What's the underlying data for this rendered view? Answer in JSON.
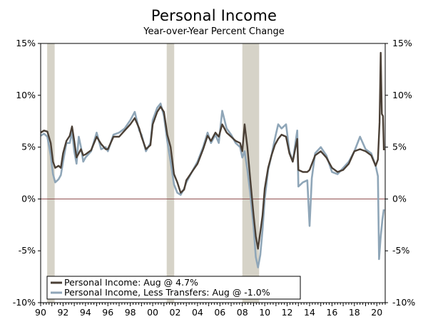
{
  "chart_data": {
    "type": "line",
    "title": "Personal Income",
    "subtitle": "Year-over-Year Percent Change",
    "y_left_ticks": [
      "15%",
      "10%",
      "5%",
      "0%",
      "-5%",
      "-10%"
    ],
    "y_right_ticks": [
      "15%",
      "10%",
      "5%",
      "0%",
      "-5%",
      "-10%"
    ],
    "y_tick_values": [
      15,
      10,
      5,
      0,
      -5,
      -10
    ],
    "ylim": [
      -10,
      15
    ],
    "xlim": [
      1990,
      2020.75
    ],
    "x_ticks": [
      "90",
      "92",
      "94",
      "96",
      "98",
      "00",
      "02",
      "04",
      "06",
      "08",
      "10",
      "12",
      "14",
      "16",
      "18",
      "20"
    ],
    "x_tick_values": [
      1990,
      1992,
      1994,
      1996,
      1998,
      2000,
      2002,
      2004,
      2006,
      2008,
      2010,
      2012,
      2014,
      2016,
      2018,
      2020
    ],
    "recessions": [
      [
        1990.58,
        1991.25
      ],
      [
        2001.25,
        2001.92
      ],
      [
        2008.0,
        2009.5
      ]
    ],
    "zero_line": true,
    "legend_position": "bottom-left",
    "colors": {
      "series1": "#4a3f35",
      "series2": "#8fa6b8",
      "recession": "#d6d3c8",
      "zero_line": "#8b4a4a"
    },
    "series": [
      {
        "name": "Personal Income: Aug @ 4.7%",
        "points": [
          [
            1990.0,
            6.4
          ],
          [
            1990.3,
            6.6
          ],
          [
            1990.6,
            6.5
          ],
          [
            1990.9,
            5.4
          ],
          [
            1991.1,
            3.6
          ],
          [
            1991.3,
            3.0
          ],
          [
            1991.6,
            3.2
          ],
          [
            1991.8,
            3.0
          ],
          [
            1992.0,
            4.4
          ],
          [
            1992.3,
            5.6
          ],
          [
            1992.6,
            6.1
          ],
          [
            1992.8,
            7.0
          ],
          [
            1993.0,
            5.6
          ],
          [
            1993.2,
            4.0
          ],
          [
            1993.6,
            4.8
          ],
          [
            1993.8,
            4.2
          ],
          [
            1994.0,
            4.3
          ],
          [
            1994.5,
            4.7
          ],
          [
            1995.0,
            6.0
          ],
          [
            1995.4,
            5.3
          ],
          [
            1995.8,
            4.8
          ],
          [
            1996.0,
            4.8
          ],
          [
            1996.5,
            6.0
          ],
          [
            1997.0,
            6.0
          ],
          [
            1997.5,
            6.6
          ],
          [
            1998.0,
            7.2
          ],
          [
            1998.4,
            7.8
          ],
          [
            1998.8,
            6.8
          ],
          [
            1999.0,
            6.0
          ],
          [
            1999.4,
            4.8
          ],
          [
            1999.8,
            5.2
          ],
          [
            2000.0,
            7.2
          ],
          [
            2000.4,
            8.4
          ],
          [
            2000.7,
            8.9
          ],
          [
            2001.0,
            8.4
          ],
          [
            2001.3,
            6.2
          ],
          [
            2001.6,
            5.0
          ],
          [
            2001.9,
            2.4
          ],
          [
            2002.2,
            1.6
          ],
          [
            2002.5,
            0.6
          ],
          [
            2002.8,
            0.9
          ],
          [
            2003.0,
            1.8
          ],
          [
            2003.5,
            2.6
          ],
          [
            2004.0,
            3.4
          ],
          [
            2004.5,
            4.8
          ],
          [
            2004.9,
            6.1
          ],
          [
            2005.2,
            5.6
          ],
          [
            2005.6,
            6.4
          ],
          [
            2005.9,
            6.0
          ],
          [
            2006.2,
            7.2
          ],
          [
            2006.6,
            6.4
          ],
          [
            2007.0,
            6.0
          ],
          [
            2007.4,
            5.6
          ],
          [
            2007.8,
            5.4
          ],
          [
            2008.0,
            4.6
          ],
          [
            2008.2,
            7.2
          ],
          [
            2008.45,
            5.0
          ],
          [
            2008.7,
            2.0
          ],
          [
            2009.0,
            -1.5
          ],
          [
            2009.2,
            -3.6
          ],
          [
            2009.4,
            -4.8
          ],
          [
            2009.6,
            -3.2
          ],
          [
            2009.8,
            -1.6
          ],
          [
            2010.0,
            1.0
          ],
          [
            2010.3,
            3.0
          ],
          [
            2010.6,
            4.2
          ],
          [
            2010.9,
            5.2
          ],
          [
            2011.2,
            5.8
          ],
          [
            2011.5,
            6.2
          ],
          [
            2011.9,
            6.0
          ],
          [
            2012.2,
            4.4
          ],
          [
            2012.5,
            3.6
          ],
          [
            2012.9,
            5.8
          ],
          [
            2013.0,
            2.8
          ],
          [
            2013.4,
            2.6
          ],
          [
            2013.8,
            2.6
          ],
          [
            2014.0,
            2.8
          ],
          [
            2014.5,
            4.2
          ],
          [
            2015.0,
            4.6
          ],
          [
            2015.5,
            4.0
          ],
          [
            2016.0,
            3.0
          ],
          [
            2016.5,
            2.6
          ],
          [
            2017.0,
            2.8
          ],
          [
            2017.5,
            3.4
          ],
          [
            2018.0,
            4.6
          ],
          [
            2018.5,
            4.8
          ],
          [
            2019.0,
            4.6
          ],
          [
            2019.5,
            4.2
          ],
          [
            2019.9,
            3.2
          ],
          [
            2020.1,
            3.8
          ],
          [
            2020.25,
            7.4
          ],
          [
            2020.35,
            14.1
          ],
          [
            2020.45,
            8.2
          ],
          [
            2020.55,
            8.0
          ],
          [
            2020.63,
            4.7
          ]
        ]
      },
      {
        "name": "Personal Income, Less Transfers: Aug @ -1.0%",
        "points": [
          [
            1990.0,
            6.1
          ],
          [
            1990.3,
            6.3
          ],
          [
            1990.6,
            6.0
          ],
          [
            1990.9,
            4.2
          ],
          [
            1991.1,
            2.4
          ],
          [
            1991.3,
            1.6
          ],
          [
            1991.6,
            1.9
          ],
          [
            1991.8,
            2.3
          ],
          [
            1992.0,
            3.6
          ],
          [
            1992.3,
            5.4
          ],
          [
            1992.6,
            5.4
          ],
          [
            1992.8,
            6.5
          ],
          [
            1993.0,
            4.6
          ],
          [
            1993.2,
            3.4
          ],
          [
            1993.4,
            6.0
          ],
          [
            1993.6,
            5.0
          ],
          [
            1993.8,
            3.6
          ],
          [
            1994.0,
            4.0
          ],
          [
            1994.5,
            4.6
          ],
          [
            1995.0,
            6.4
          ],
          [
            1995.4,
            4.8
          ],
          [
            1995.8,
            5.0
          ],
          [
            1996.0,
            4.6
          ],
          [
            1996.5,
            6.2
          ],
          [
            1997.0,
            6.4
          ],
          [
            1997.5,
            6.8
          ],
          [
            1998.0,
            7.6
          ],
          [
            1998.4,
            8.4
          ],
          [
            1998.8,
            6.6
          ],
          [
            1999.0,
            6.2
          ],
          [
            1999.4,
            4.6
          ],
          [
            1999.8,
            5.4
          ],
          [
            2000.0,
            7.6
          ],
          [
            2000.4,
            8.8
          ],
          [
            2000.7,
            9.2
          ],
          [
            2001.0,
            8.0
          ],
          [
            2001.3,
            5.6
          ],
          [
            2001.6,
            3.6
          ],
          [
            2001.9,
            1.4
          ],
          [
            2002.2,
            0.6
          ],
          [
            2002.5,
            0.4
          ],
          [
            2002.8,
            1.0
          ],
          [
            2003.0,
            1.6
          ],
          [
            2003.5,
            2.6
          ],
          [
            2004.0,
            3.6
          ],
          [
            2004.5,
            5.0
          ],
          [
            2004.9,
            6.4
          ],
          [
            2005.2,
            5.4
          ],
          [
            2005.6,
            6.2
          ],
          [
            2005.9,
            5.4
          ],
          [
            2006.2,
            8.5
          ],
          [
            2006.6,
            6.8
          ],
          [
            2007.0,
            6.2
          ],
          [
            2007.4,
            5.4
          ],
          [
            2007.8,
            5.0
          ],
          [
            2008.0,
            4.0
          ],
          [
            2008.2,
            4.6
          ],
          [
            2008.45,
            2.8
          ],
          [
            2008.7,
            0.6
          ],
          [
            2009.0,
            -2.6
          ],
          [
            2009.2,
            -5.6
          ],
          [
            2009.4,
            -6.6
          ],
          [
            2009.6,
            -5.4
          ],
          [
            2009.8,
            -3.0
          ],
          [
            2010.0,
            0.0
          ],
          [
            2010.3,
            2.8
          ],
          [
            2010.6,
            4.2
          ],
          [
            2010.9,
            5.8
          ],
          [
            2011.2,
            7.2
          ],
          [
            2011.5,
            6.8
          ],
          [
            2011.9,
            7.2
          ],
          [
            2012.2,
            4.6
          ],
          [
            2012.5,
            3.6
          ],
          [
            2012.9,
            6.6
          ],
          [
            2013.0,
            1.2
          ],
          [
            2013.4,
            1.6
          ],
          [
            2013.8,
            1.8
          ],
          [
            2014.0,
            -2.6
          ],
          [
            2014.2,
            2.0
          ],
          [
            2014.5,
            4.4
          ],
          [
            2015.0,
            5.0
          ],
          [
            2015.5,
            4.2
          ],
          [
            2016.0,
            2.6
          ],
          [
            2016.5,
            2.4
          ],
          [
            2017.0,
            3.0
          ],
          [
            2017.5,
            3.6
          ],
          [
            2018.0,
            4.6
          ],
          [
            2018.5,
            6.0
          ],
          [
            2019.0,
            4.8
          ],
          [
            2019.5,
            4.4
          ],
          [
            2019.9,
            3.2
          ],
          [
            2020.1,
            2.2
          ],
          [
            2020.2,
            -5.8
          ],
          [
            2020.35,
            -3.6
          ],
          [
            2020.5,
            -2.0
          ],
          [
            2020.63,
            -1.0
          ]
        ]
      }
    ]
  }
}
